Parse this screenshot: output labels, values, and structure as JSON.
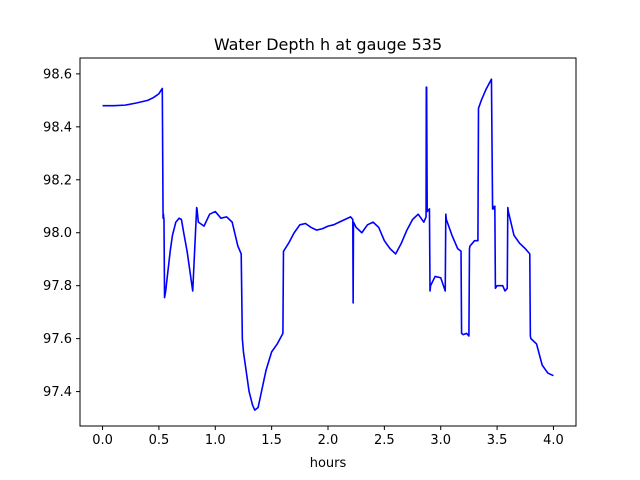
{
  "chart_data": {
    "type": "line",
    "title": "Water Depth h at gauge 535",
    "xlabel": "hours",
    "ylabel": "",
    "xlim": [
      -0.2,
      4.2
    ],
    "ylim": [
      97.27,
      98.66
    ],
    "grid": false,
    "xticks": [
      0.0,
      0.5,
      1.0,
      1.5,
      2.0,
      2.5,
      3.0,
      3.5,
      4.0
    ],
    "xtick_labels": [
      "0.0",
      "0.5",
      "1.0",
      "1.5",
      "2.0",
      "2.5",
      "3.0",
      "3.5",
      "4.0"
    ],
    "yticks": [
      97.4,
      97.6,
      97.8,
      98.0,
      98.2,
      98.4,
      98.6
    ],
    "ytick_labels": [
      "97.4",
      "97.6",
      "97.8",
      "98.0",
      "98.2",
      "98.4",
      "98.6"
    ],
    "series": [
      {
        "color": "#0000ff",
        "x": [
          0.0,
          0.1,
          0.2,
          0.3,
          0.4,
          0.45,
          0.5,
          0.53,
          0.537,
          0.54,
          0.542,
          0.545,
          0.55,
          0.56,
          0.6,
          0.62,
          0.65,
          0.68,
          0.7,
          0.72,
          0.75,
          0.8,
          0.835,
          0.838,
          0.845,
          0.85,
          0.9,
          0.95,
          1.0,
          1.05,
          1.1,
          1.15,
          1.2,
          1.23,
          1.24,
          1.25,
          1.3,
          1.33,
          1.35,
          1.38,
          1.4,
          1.45,
          1.5,
          1.55,
          1.6,
          1.605,
          1.65,
          1.7,
          1.75,
          1.8,
          1.85,
          1.9,
          1.95,
          2.0,
          2.05,
          2.1,
          2.15,
          2.2,
          2.22,
          2.223,
          2.226,
          2.25,
          2.3,
          2.35,
          2.4,
          2.45,
          2.5,
          2.55,
          2.6,
          2.65,
          2.7,
          2.75,
          2.8,
          2.85,
          2.87,
          2.872,
          2.875,
          2.88,
          2.9,
          2.905,
          2.91,
          2.95,
          3.0,
          3.04,
          3.045,
          3.05,
          3.1,
          3.15,
          3.18,
          3.185,
          3.2,
          3.23,
          3.25,
          3.255,
          3.26,
          3.3,
          3.33,
          3.335,
          3.36,
          3.4,
          3.45,
          3.46,
          3.465,
          3.47,
          3.48,
          3.485,
          3.5,
          3.55,
          3.57,
          3.59,
          3.595,
          3.6,
          3.65,
          3.7,
          3.75,
          3.79,
          3.795,
          3.8,
          3.85,
          3.9,
          3.95,
          4.0
        ],
        "y": [
          98.48,
          98.48,
          98.482,
          98.49,
          98.5,
          98.51,
          98.525,
          98.545,
          98.055,
          98.07,
          98.06,
          98.05,
          97.755,
          97.78,
          97.93,
          97.99,
          98.04,
          98.055,
          98.05,
          98.0,
          97.93,
          97.78,
          98.095,
          98.09,
          98.06,
          98.04,
          98.025,
          98.07,
          98.08,
          98.055,
          98.06,
          98.04,
          97.95,
          97.92,
          97.6,
          97.55,
          97.4,
          97.35,
          97.33,
          97.34,
          97.38,
          97.48,
          97.55,
          97.58,
          97.62,
          97.93,
          97.96,
          98.0,
          98.03,
          98.035,
          98.02,
          98.01,
          98.015,
          98.025,
          98.03,
          98.04,
          98.05,
          98.06,
          98.05,
          97.735,
          98.04,
          98.02,
          98.0,
          98.03,
          98.04,
          98.02,
          97.97,
          97.94,
          97.92,
          97.96,
          98.01,
          98.05,
          98.07,
          98.04,
          98.06,
          98.55,
          98.55,
          98.08,
          98.09,
          97.78,
          97.8,
          97.835,
          97.83,
          97.78,
          98.07,
          98.05,
          97.99,
          97.94,
          97.93,
          97.62,
          97.615,
          97.62,
          97.61,
          97.94,
          97.95,
          97.97,
          97.97,
          98.47,
          98.5,
          98.54,
          98.58,
          98.09,
          98.1,
          98.09,
          98.1,
          97.79,
          97.8,
          97.8,
          97.78,
          97.79,
          98.095,
          98.08,
          97.99,
          97.96,
          97.94,
          97.92,
          97.61,
          97.6,
          97.58,
          97.5,
          97.47,
          97.46
        ]
      }
    ]
  }
}
